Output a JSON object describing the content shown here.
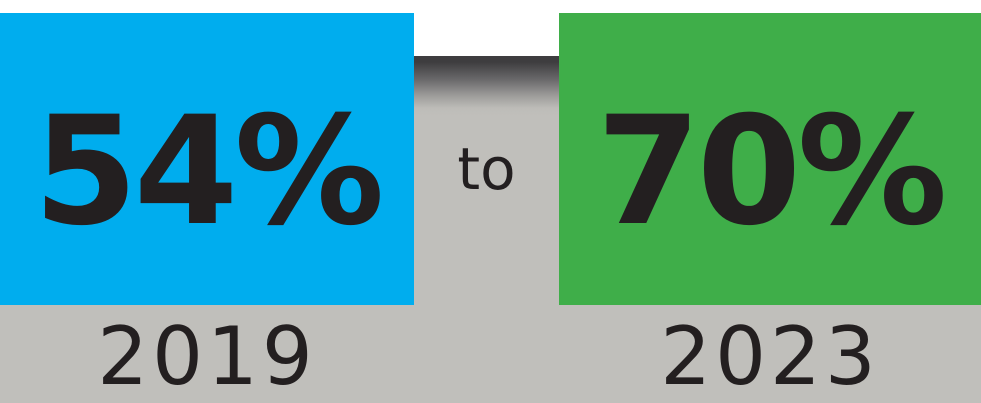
{
  "left": {
    "value": "54%",
    "year": "2019",
    "color": "#00adee"
  },
  "connector_text": "to",
  "right": {
    "value": "70%",
    "year": "2023",
    "color": "#3fae49"
  },
  "colors": {
    "band": "#c0bfbb",
    "text": "#231f20"
  }
}
